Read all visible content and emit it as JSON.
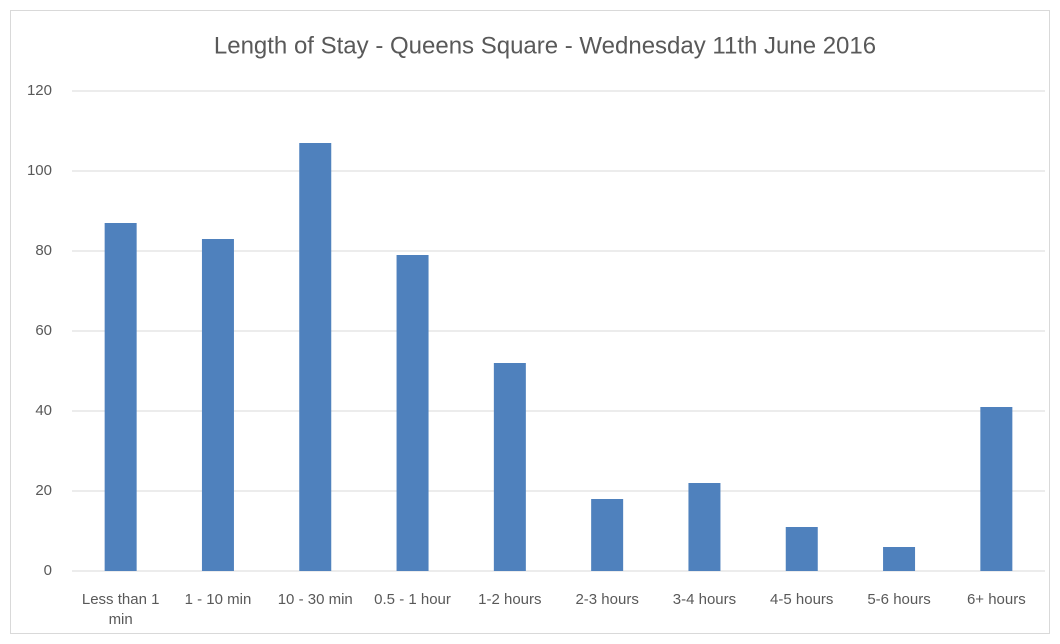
{
  "chart_data": {
    "type": "bar",
    "title": "Length of Stay - Queens Square - Wednesday 11th June 2016",
    "categories": [
      "Less than 1 min",
      "1 - 10 min",
      "10 - 30 min",
      "0.5 - 1 hour",
      "1-2 hours",
      "2-3 hours",
      "3-4 hours",
      "4-5 hours",
      "5-6 hours",
      "6+ hours"
    ],
    "values": [
      87,
      83,
      107,
      79,
      52,
      18,
      22,
      11,
      6,
      41
    ],
    "color": "#4f81bd",
    "ylim": [
      0,
      120
    ],
    "yticks": [
      0,
      20,
      40,
      60,
      80,
      100,
      120
    ],
    "grid": true
  }
}
